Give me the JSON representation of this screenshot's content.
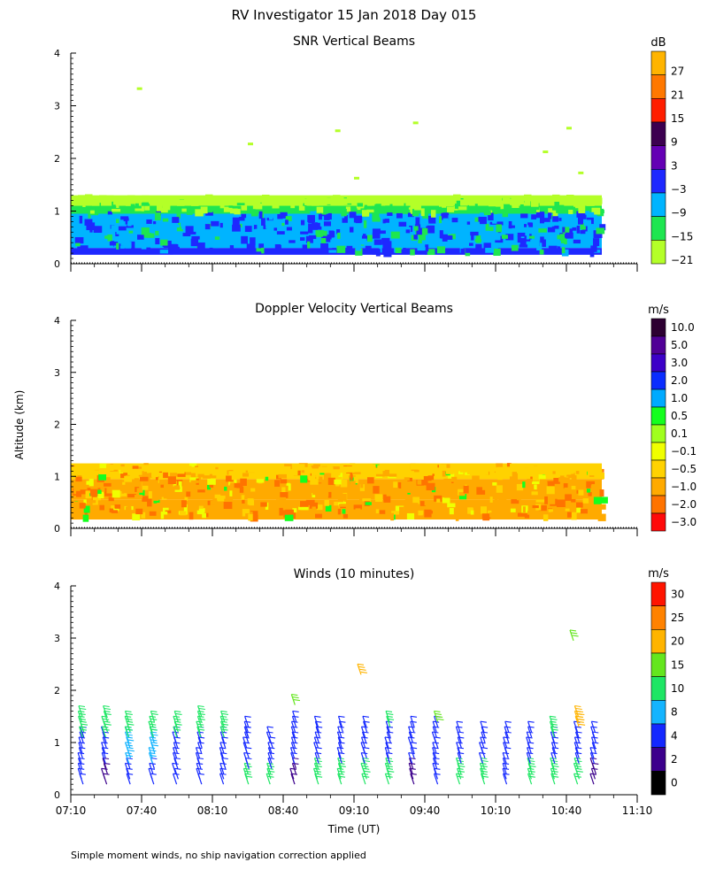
{
  "figure": {
    "title": "RV Investigator  15 Jan 2018 Day 015",
    "ylabel": "Altitude (km)",
    "xlabel": "Time (UT)",
    "footnote": "Simple moment winds, no ship navigation correction applied"
  },
  "chart_data": [
    {
      "type": "heatmap",
      "title": "SNR Vertical Beams",
      "unit": "dB",
      "xlim": [
        "07:10",
        "11:10"
      ],
      "ylim": [
        0,
        4
      ],
      "x_ticks": [
        "07:10",
        "07:40",
        "08:10",
        "08:40",
        "09:10",
        "09:40",
        "10:10",
        "10:40",
        "11:10"
      ],
      "y_ticks": [
        0,
        1,
        2,
        3,
        4
      ],
      "x_tick_labels_shown": false,
      "data_time_range": [
        "07:10",
        "10:55"
      ],
      "colorbar": {
        "labels": [
          "27",
          "21",
          "15",
          "9",
          "3",
          "−3",
          "−9",
          "−15",
          "−21"
        ],
        "colors": [
          "#ffb400",
          "#ff7800",
          "#ff1e00",
          "#3c0050",
          "#6400b4",
          "#1e28ff",
          "#00b4ff",
          "#1ee650",
          "#b4ff28"
        ]
      },
      "layers": [
        {
          "altitude_km": [
            0.17,
            0.3
          ],
          "value_db": -3
        },
        {
          "altitude_km": [
            0.3,
            1.05
          ],
          "value_db": -9,
          "note_range_db": [
            -9,
            -3
          ]
        },
        {
          "altitude_km": [
            0.95,
            1.18
          ],
          "value_db": -15
        },
        {
          "altitude_km": [
            1.1,
            1.3
          ],
          "value_db": -21
        }
      ],
      "specks": [
        {
          "t": "07:38",
          "alt": 3.35
        },
        {
          "t": "08:25",
          "alt": 2.3
        },
        {
          "t": "09:02",
          "alt": 2.55
        },
        {
          "t": "09:35",
          "alt": 2.7
        },
        {
          "t": "10:30",
          "alt": 2.15
        },
        {
          "t": "10:40",
          "alt": 2.6
        },
        {
          "t": "10:45",
          "alt": 1.75
        },
        {
          "t": "09:10",
          "alt": 1.65
        }
      ]
    },
    {
      "type": "heatmap",
      "title": "Doppler Velocity Vertical Beams",
      "unit": "m/s",
      "xlim": [
        "07:10",
        "11:10"
      ],
      "ylim": [
        0,
        4
      ],
      "x_ticks": [
        "07:10",
        "07:40",
        "08:10",
        "08:40",
        "09:10",
        "09:40",
        "10:10",
        "10:40",
        "11:10"
      ],
      "y_ticks": [
        0,
        1,
        2,
        3,
        4
      ],
      "x_tick_labels_shown": false,
      "data_time_range": [
        "07:10",
        "10:55"
      ],
      "colorbar": {
        "labels": [
          "10.0",
          "5.0",
          "3.0",
          "2.0",
          "1.0",
          "0.5",
          "0.1",
          "−0.1",
          "−0.5",
          "−1.0",
          "−2.0",
          "−3.0"
        ],
        "colors": [
          "#2d0032",
          "#500096",
          "#3c00c8",
          "#0a2dff",
          "#00aaff",
          "#14ff1e",
          "#a0ff1e",
          "#f0ff00",
          "#ffd200",
          "#ffaa00",
          "#ff7300",
          "#ff0a0a"
        ]
      },
      "layers": [
        {
          "altitude_km": [
            0.17,
            0.55
          ],
          "value_ms": -1.5
        },
        {
          "altitude_km": [
            0.55,
            0.95
          ],
          "value_ms": -1.0
        },
        {
          "altitude_km": [
            0.95,
            1.25
          ],
          "value_ms": -0.5
        }
      ]
    },
    {
      "type": "barbs",
      "title": "Winds (10 minutes)",
      "unit": "m/s",
      "xlim": [
        "07:10",
        "11:10"
      ],
      "ylim": [
        0,
        4
      ],
      "x_ticks": [
        "07:10",
        "07:40",
        "08:10",
        "08:40",
        "09:10",
        "09:40",
        "10:10",
        "10:40",
        "11:10"
      ],
      "y_ticks": [
        0,
        1,
        2,
        3,
        4
      ],
      "colorbar": {
        "labels": [
          "30",
          "25",
          "20",
          "15",
          "10",
          "8",
          "4",
          "2",
          "0"
        ],
        "colors": [
          "#ff1400",
          "#ff8200",
          "#ffb400",
          "#64e61e",
          "#1ee664",
          "#14b4ff",
          "#1428ff",
          "#3c008c",
          "#000000"
        ]
      },
      "profiles": [
        {
          "t": "07:15",
          "bands": [
            [
              0.2,
              0.6,
              5
            ],
            [
              0.6,
              1.1,
              7
            ],
            [
              1.1,
              1.6,
              11
            ]
          ]
        },
        {
          "t": "07:25",
          "bands": [
            [
              0.2,
              0.6,
              3
            ],
            [
              0.6,
              1.1,
              7
            ],
            [
              1.1,
              1.6,
              11
            ]
          ]
        },
        {
          "t": "07:35",
          "bands": [
            [
              0.2,
              0.6,
              6
            ],
            [
              0.6,
              1.1,
              9
            ],
            [
              1.1,
              1.5,
              12
            ]
          ]
        },
        {
          "t": "07:45",
          "bands": [
            [
              0.2,
              0.6,
              5
            ],
            [
              0.6,
              1.1,
              8
            ],
            [
              1.1,
              1.5,
              11
            ]
          ]
        },
        {
          "t": "07:55",
          "bands": [
            [
              0.2,
              0.6,
              6
            ],
            [
              0.6,
              1.1,
              6
            ],
            [
              1.1,
              1.5,
              11
            ]
          ]
        },
        {
          "t": "08:05",
          "bands": [
            [
              0.2,
              0.6,
              6
            ],
            [
              0.6,
              1.1,
              7
            ],
            [
              1.1,
              1.6,
              11
            ]
          ]
        },
        {
          "t": "08:15",
          "bands": [
            [
              0.2,
              0.6,
              6
            ],
            [
              0.6,
              1.1,
              7
            ],
            [
              1.1,
              1.5,
              12
            ]
          ]
        },
        {
          "t": "08:25",
          "bands": [
            [
              0.2,
              0.5,
              12
            ],
            [
              0.5,
              1.1,
              6
            ],
            [
              1.1,
              1.4,
              5
            ]
          ]
        },
        {
          "t": "08:35",
          "bands": [
            [
              0.2,
              0.5,
              12
            ],
            [
              0.5,
              1.1,
              6
            ]
          ]
        },
        {
          "t": "08:45",
          "bands": [
            [
              0.2,
              0.6,
              3
            ],
            [
              0.6,
              1.5,
              6
            ]
          ]
        },
        {
          "t": "08:55",
          "bands": [
            [
              0.2,
              0.6,
              11
            ],
            [
              0.6,
              1.4,
              6
            ]
          ]
        },
        {
          "t": "09:05",
          "bands": [
            [
              0.2,
              0.6,
              12
            ],
            [
              0.6,
              1.4,
              6
            ]
          ]
        },
        {
          "t": "09:15",
          "bands": [
            [
              0.2,
              0.6,
              12
            ],
            [
              0.6,
              1.4,
              6
            ]
          ]
        },
        {
          "t": "09:25",
          "bands": [
            [
              0.2,
              0.6,
              12
            ],
            [
              0.6,
              1.3,
              6
            ],
            [
              1.3,
              1.5,
              11
            ]
          ]
        },
        {
          "t": "09:35",
          "bands": [
            [
              0.2,
              0.6,
              3
            ],
            [
              0.6,
              1.4,
              6
            ]
          ]
        },
        {
          "t": "09:45",
          "bands": [
            [
              0.2,
              0.6,
              6
            ],
            [
              0.6,
              1.4,
              7
            ],
            [
              1.4,
              1.5,
              18
            ]
          ]
        },
        {
          "t": "09:55",
          "bands": [
            [
              0.2,
              0.6,
              12
            ],
            [
              0.6,
              1.3,
              6
            ]
          ]
        },
        {
          "t": "10:05",
          "bands": [
            [
              0.2,
              0.6,
              12
            ],
            [
              0.6,
              1.3,
              6
            ]
          ]
        },
        {
          "t": "10:15",
          "bands": [
            [
              0.2,
              0.6,
              6
            ],
            [
              0.6,
              1.3,
              7
            ]
          ]
        },
        {
          "t": "10:25",
          "bands": [
            [
              0.2,
              0.6,
              12
            ],
            [
              0.6,
              1.3,
              6
            ]
          ]
        },
        {
          "t": "10:35",
          "bands": [
            [
              0.2,
              0.6,
              12
            ],
            [
              0.6,
              1.1,
              6
            ],
            [
              1.1,
              1.4,
              11
            ]
          ]
        },
        {
          "t": "10:45",
          "bands": [
            [
              0.2,
              0.6,
              12
            ],
            [
              0.6,
              1.3,
              6
            ],
            [
              1.3,
              1.6,
              22
            ]
          ]
        },
        {
          "t": "10:52",
          "bands": [
            [
              0.2,
              0.6,
              3
            ],
            [
              0.6,
              1.3,
              6
            ]
          ]
        }
      ],
      "extra_barbs": [
        {
          "t": "08:45",
          "alt": 1.72,
          "speed": 16
        },
        {
          "t": "09:13",
          "alt": 2.3,
          "speed": 22
        },
        {
          "t": "10:43",
          "alt": 2.95,
          "speed": 16
        }
      ]
    }
  ]
}
